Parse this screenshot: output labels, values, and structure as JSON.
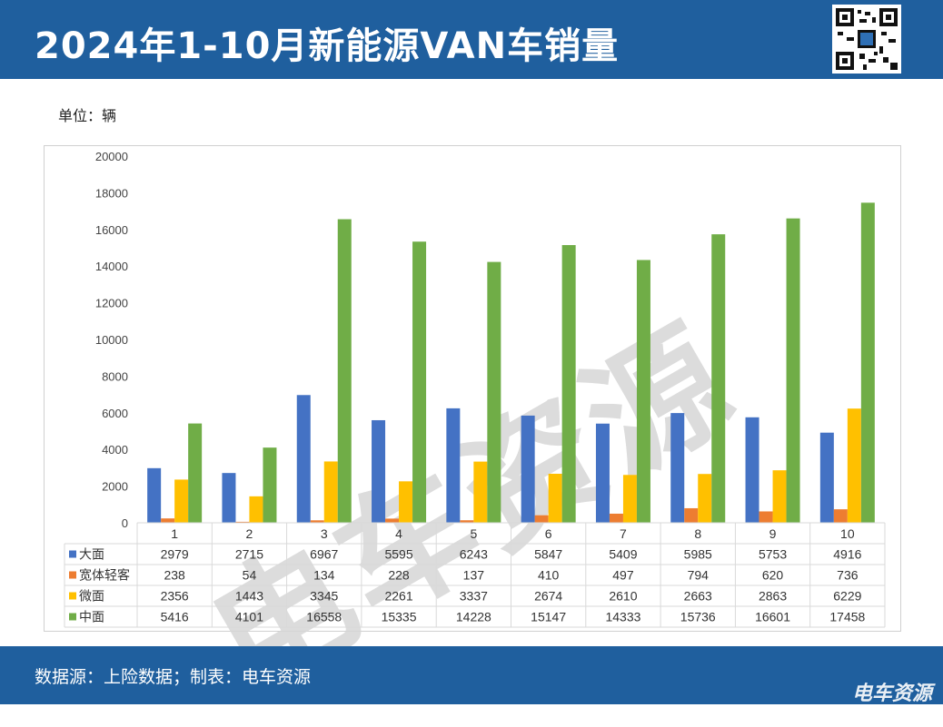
{
  "header": {
    "title": "2024年1-10月新能源VAN车销量"
  },
  "unit_label": "单位：辆",
  "watermark": "电车资源",
  "footer": {
    "source": "数据源：上险数据；制表：电车资源",
    "brand": "电车资源"
  },
  "colors": {
    "header_bg": "#1f5f9e",
    "大面": "#4472c4",
    "宽体轻客": "#ed7d31",
    "微面": "#ffc000",
    "中面": "#70ad47"
  },
  "chart_data": {
    "type": "bar",
    "categories": [
      "1",
      "2",
      "3",
      "4",
      "5",
      "6",
      "7",
      "8",
      "9",
      "10"
    ],
    "series": [
      {
        "name": "大面",
        "color": "#4472c4",
        "values": [
          2979,
          2715,
          6967,
          5595,
          6243,
          5847,
          5409,
          5985,
          5753,
          4916
        ]
      },
      {
        "name": "宽体轻客",
        "color": "#ed7d31",
        "values": [
          238,
          54,
          134,
          228,
          137,
          410,
          497,
          794,
          620,
          736
        ]
      },
      {
        "name": "微面",
        "color": "#ffc000",
        "values": [
          2356,
          1443,
          3345,
          2261,
          3337,
          2674,
          2610,
          2663,
          2863,
          6229
        ]
      },
      {
        "name": "中面",
        "color": "#70ad47",
        "values": [
          5416,
          4101,
          16558,
          15335,
          14228,
          15147,
          14333,
          15736,
          16601,
          17458
        ]
      }
    ],
    "y_ticks": [
      "0",
      "2000",
      "4000",
      "6000",
      "8000",
      "10000",
      "12000",
      "14000",
      "16000",
      "18000",
      "20000"
    ],
    "ylim": [
      0,
      20000
    ],
    "grid": false,
    "legend": "data-table"
  }
}
